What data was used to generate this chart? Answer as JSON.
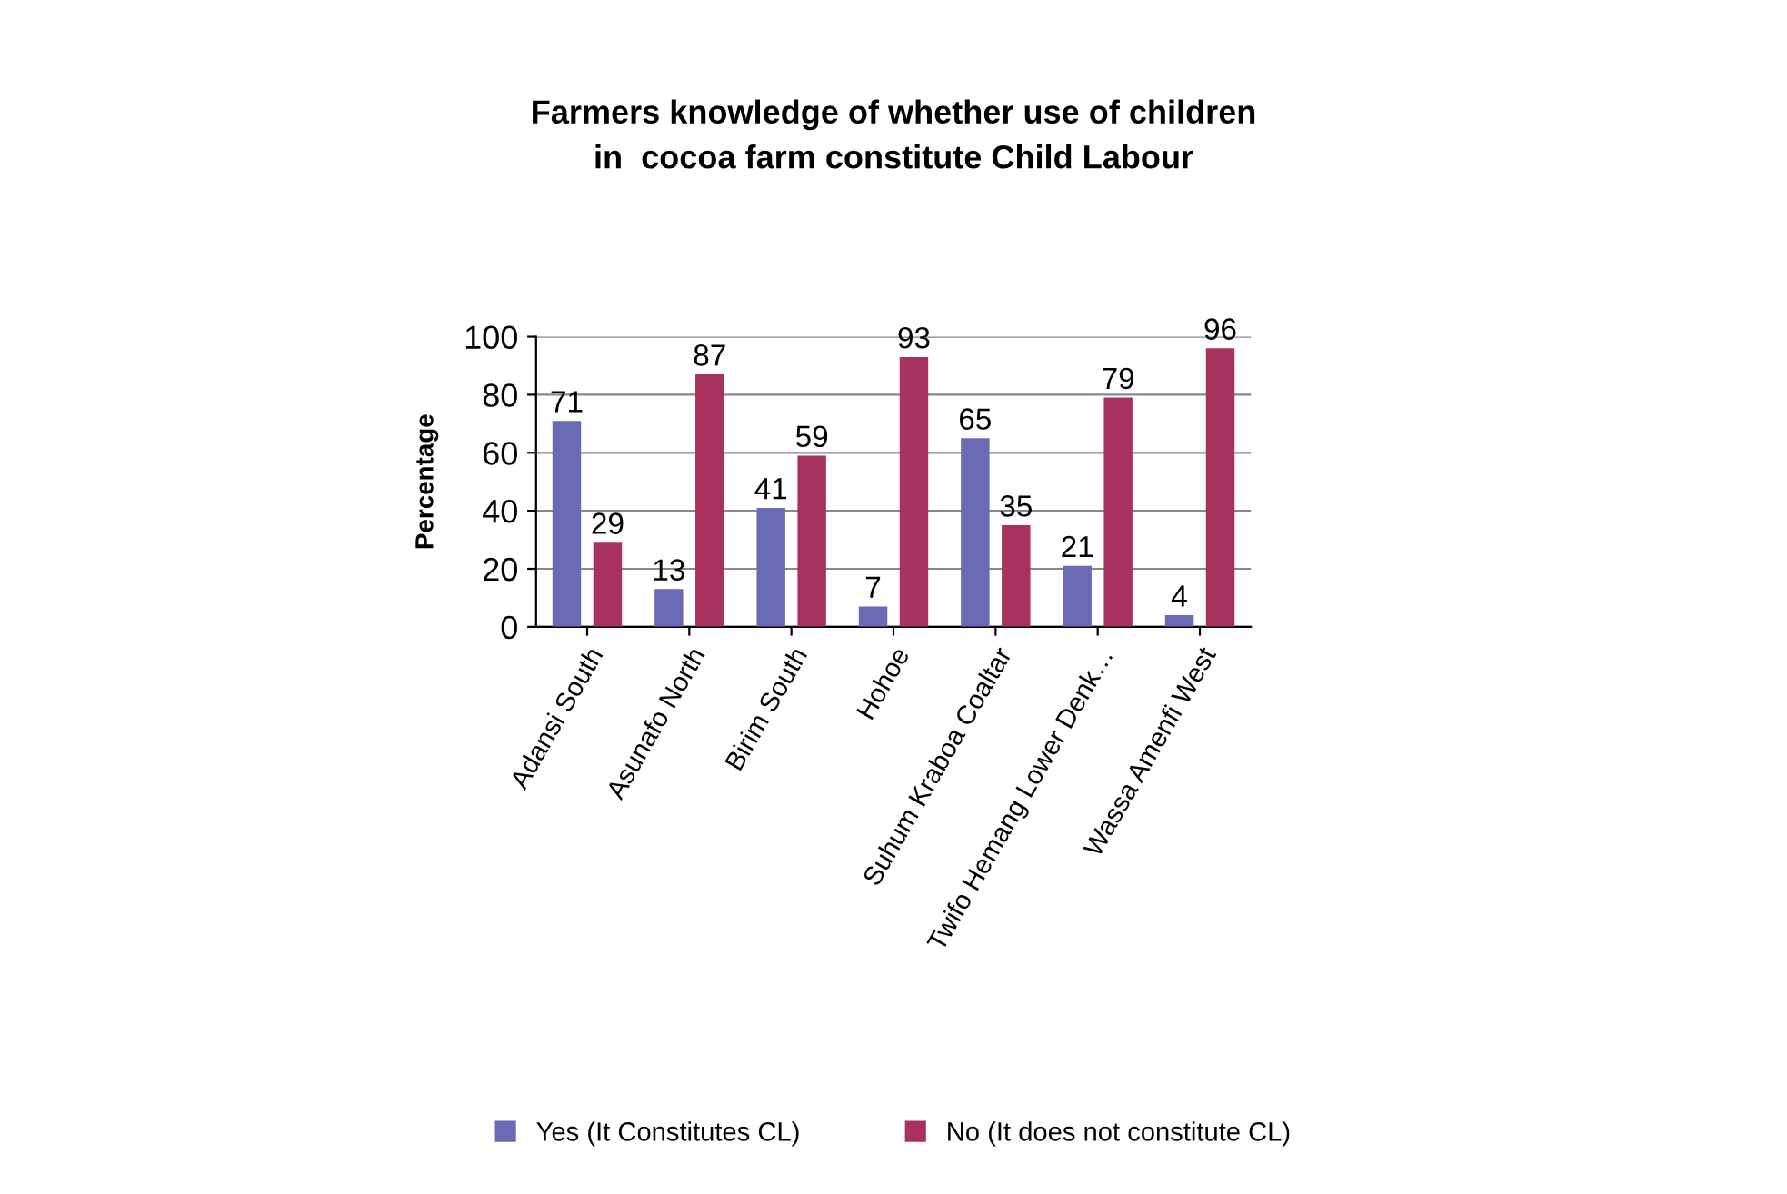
{
  "chart_data": {
    "type": "bar",
    "title": "Farmers knowledge of whether use of children\nin  cocoa farm constitute Child Labour",
    "ylabel": "Percentage",
    "categories": [
      "Adansi South",
      "Asunafo North",
      "Birim South",
      "Hohoe",
      "Suhum Kraboa Coaltar",
      "Twifo Hemang Lower Denk…",
      "Wassa Amenfi West"
    ],
    "series": [
      {
        "name": "Yes (It Constitutes CL)",
        "color": "#6b6bb5",
        "values": [
          71,
          13,
          41,
          7,
          65,
          21,
          4
        ]
      },
      {
        "name": "No (It does not constitute CL)",
        "color": "#a8325e",
        "values": [
          29,
          87,
          59,
          93,
          35,
          79,
          96
        ]
      }
    ],
    "ylim": [
      0,
      100
    ],
    "yticks": [
      0,
      20,
      40,
      60,
      80,
      100
    ],
    "grid": "y",
    "legend": "bottom",
    "data_labels": true
  }
}
